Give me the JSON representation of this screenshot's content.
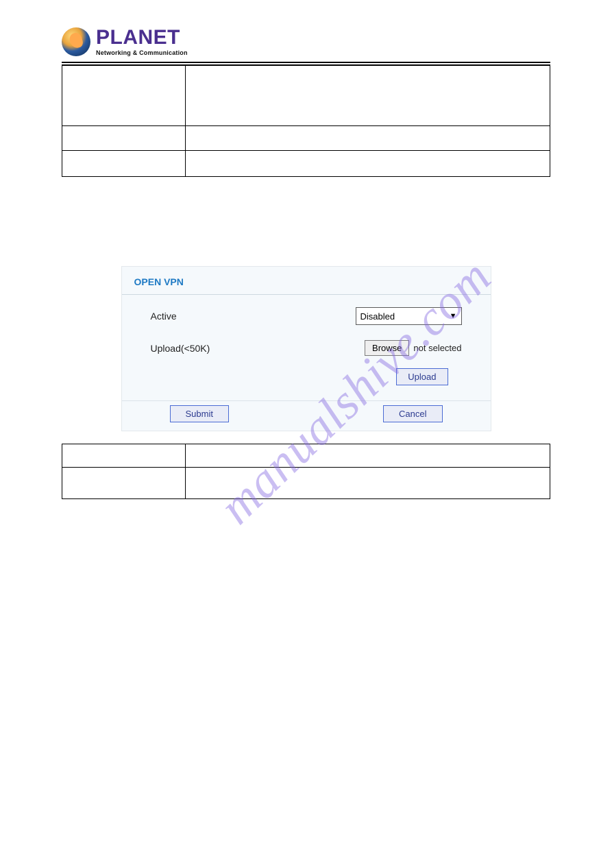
{
  "logo": {
    "brand": "PLANET",
    "tagline": "Networking & Communication"
  },
  "screenshot": {
    "title": "OPEN VPN",
    "active_label": "Active",
    "active_value": "Disabled",
    "upload_label": "Upload(<50K)",
    "browse_label": "Browse",
    "not_selected": "not selected",
    "upload_button": "Upload",
    "submit": "Submit",
    "cancel": "Cancel",
    "colors": {
      "title_color": "#1f7ac4",
      "panel_bg": "#f5f9fc",
      "button_border": "#4a6bd4",
      "button_bg": "#e9ecf7",
      "button_text": "#2b3a8f"
    }
  },
  "watermark": "manualshive.com"
}
